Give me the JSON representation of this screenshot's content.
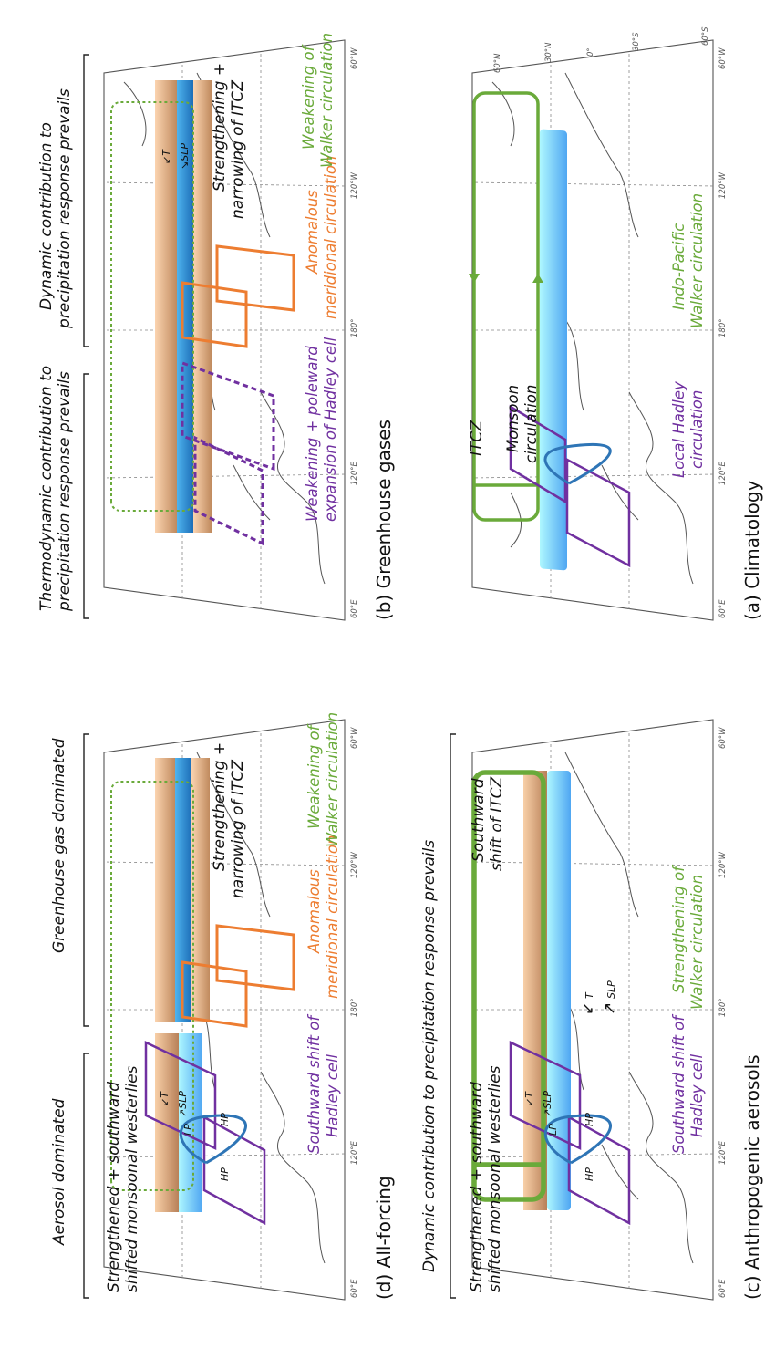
{
  "panels": {
    "a": {
      "title": "(a) Climatology",
      "itcz": "ITCZ",
      "monsoon": [
        "Monsoon",
        "circulation"
      ],
      "hadley": [
        "Local Hadley",
        "circulation"
      ],
      "walker": [
        "Indo-Pacific",
        "Walker circulation"
      ]
    },
    "b": {
      "title": "(b) Greenhouse gases",
      "hadley": [
        "Weakening + poleward",
        "expansion of Hadley cell"
      ],
      "meridional": [
        "Anomalous",
        "meridional circulation"
      ],
      "walker": [
        "Weakening of",
        "Walker circulation"
      ],
      "itcz": [
        "Strengthening +",
        "narrowing of ITCZ"
      ],
      "tslp": [
        "↙T",
        "↘SLP"
      ],
      "bottom_left": [
        "Thermodynamic contribution to",
        "precipitation response prevails"
      ],
      "bottom_right": [
        "Dynamic contribution to",
        "precipitation response prevails"
      ]
    },
    "c": {
      "title": "(c) Anthropogenic aerosols",
      "hadley": [
        "Southward shift of",
        "Hadley cell"
      ],
      "walker": [
        "Strengthening of",
        "Walker circulation"
      ],
      "westerlies": [
        "Strengthened + southward",
        "shifted monsoonal westerlies"
      ],
      "itcz": [
        "Southward",
        "shift of ITCZ"
      ],
      "tslp_small": [
        "↙T",
        "↗SLP"
      ],
      "t_big": "↙",
      "t_big_label": "T",
      "slp_big": "↗",
      "slp_big_label": "SLP",
      "hp": "HP",
      "lp": "LP",
      "bottom": "Dynamic contribution to precipitation response prevails"
    },
    "d": {
      "title": "(d) All-forcing",
      "hadley": [
        "Southward shift of",
        "Hadley cell"
      ],
      "meridional": [
        "Anomalous",
        "meridional circulation"
      ],
      "walker": [
        "Weakening of",
        "Walker circulation"
      ],
      "westerlies": [
        "Strengthened + southward",
        "shifted monsoonal westerlies"
      ],
      "itcz": [
        "Strengthening +",
        "narrowing of ITCZ"
      ],
      "tslp": [
        "↙T",
        "↗SLP"
      ],
      "hp": "HP",
      "lp": "LP",
      "bottom_left": "Aerosol dominated",
      "bottom_right": "Greenhouse gas dominated"
    }
  },
  "ticks": {
    "lon": [
      "60°E",
      "120°E",
      "180°",
      "120°W",
      "60°W"
    ],
    "lat": [
      "60°N",
      "30°N",
      "0°",
      "30°S",
      "60°S"
    ]
  },
  "colors": {
    "purple": "#7030a0",
    "green": "#6aaa3a",
    "orange": "#ed7d31",
    "blue": "#2e75b6",
    "cyan": "#9eeefc",
    "tan": "#e8b88a"
  }
}
